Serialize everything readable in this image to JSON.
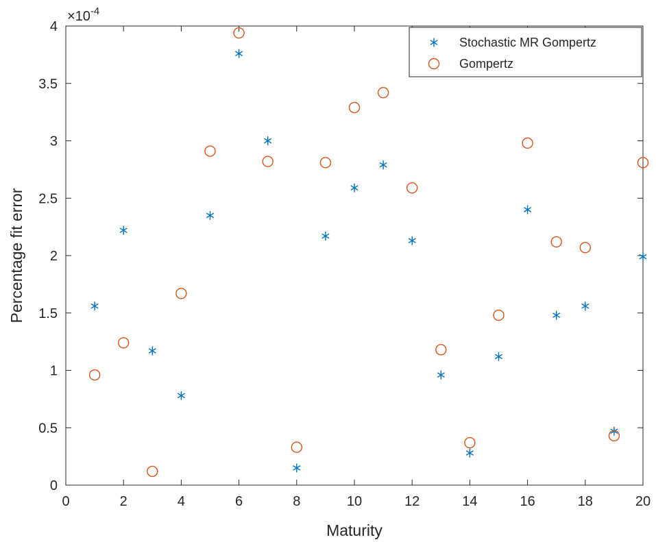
{
  "chart_data": {
    "type": "scatter",
    "xlabel": "Maturity",
    "ylabel": "Percentage fit error",
    "y_exponent_label": "×10",
    "y_exponent_power": "-4",
    "xlim": [
      0,
      20
    ],
    "ylim": [
      0,
      4
    ],
    "x_ticks": [
      0,
      2,
      4,
      6,
      8,
      10,
      12,
      14,
      16,
      18,
      20
    ],
    "y_ticks": [
      0,
      0.5,
      1,
      1.5,
      2,
      2.5,
      3,
      3.5,
      4
    ],
    "y_tick_labels": [
      "0",
      "0.5",
      "1",
      "1.5",
      "2",
      "2.5",
      "3",
      "3.5",
      "4"
    ],
    "grid": false,
    "legend_position": "top-right",
    "series": [
      {
        "name": "Stochastic MR Gompertz",
        "marker": "asterisk",
        "color": "#0072BD",
        "x": [
          1,
          2,
          3,
          4,
          5,
          6,
          7,
          8,
          9,
          10,
          11,
          12,
          13,
          14,
          15,
          16,
          17,
          18,
          19,
          20
        ],
        "y": [
          1.56,
          2.22,
          1.17,
          0.78,
          2.35,
          3.76,
          3.0,
          0.15,
          2.17,
          2.59,
          2.79,
          2.13,
          0.96,
          0.28,
          1.12,
          2.4,
          1.48,
          1.56,
          0.47,
          1.99
        ]
      },
      {
        "name": "Gompertz",
        "marker": "circle",
        "color": "#D95319",
        "x": [
          1,
          2,
          3,
          4,
          5,
          6,
          7,
          8,
          9,
          10,
          11,
          12,
          13,
          14,
          15,
          16,
          17,
          18,
          19,
          20
        ],
        "y": [
          0.96,
          1.24,
          0.12,
          1.67,
          2.91,
          3.94,
          2.82,
          0.33,
          2.81,
          3.29,
          3.42,
          2.59,
          1.18,
          0.37,
          1.48,
          2.98,
          2.12,
          2.07,
          0.43,
          2.81
        ]
      }
    ]
  }
}
